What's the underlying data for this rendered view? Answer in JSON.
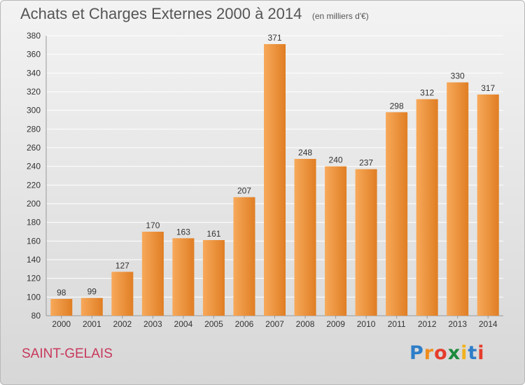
{
  "title": "Achats et Charges Externes 2000 à 2014",
  "unit_note": "(en milliers d'€)",
  "commune": "SAINT-GELAIS",
  "brand": {
    "name": "Proxiti",
    "letters": [
      "P",
      "r",
      "o",
      "x",
      "i",
      "t",
      "i"
    ],
    "letter_colors": [
      "#2e7ec8",
      "#f08c1e",
      "#e53c2c",
      "#1c8a3c",
      "#f2b21c",
      "#2e7ec8",
      "#e53c2c"
    ]
  },
  "colors": {
    "bar_light": "#f7a95a",
    "bar_dark": "#e07e24",
    "grid": "#ffffff",
    "axis_text": "#333333"
  },
  "chart_data": {
    "type": "bar",
    "categories": [
      "2000",
      "2001",
      "2002",
      "2003",
      "2004",
      "2005",
      "2006",
      "2007",
      "2008",
      "2009",
      "2010",
      "2011",
      "2012",
      "2013",
      "2014"
    ],
    "values": [
      98,
      99,
      127,
      170,
      163,
      161,
      207,
      371,
      248,
      240,
      237,
      298,
      312,
      330,
      317
    ],
    "data_labels": [
      "98",
      "99",
      "127",
      "170",
      "163",
      "161",
      "207",
      "371",
      "248",
      "240",
      "237",
      "298",
      "312",
      "330",
      "317"
    ],
    "ylim": [
      80,
      380
    ],
    "yticks": [
      80,
      100,
      120,
      140,
      160,
      180,
      200,
      220,
      240,
      260,
      280,
      300,
      320,
      340,
      360,
      380
    ],
    "grid": true,
    "legend": "none"
  }
}
